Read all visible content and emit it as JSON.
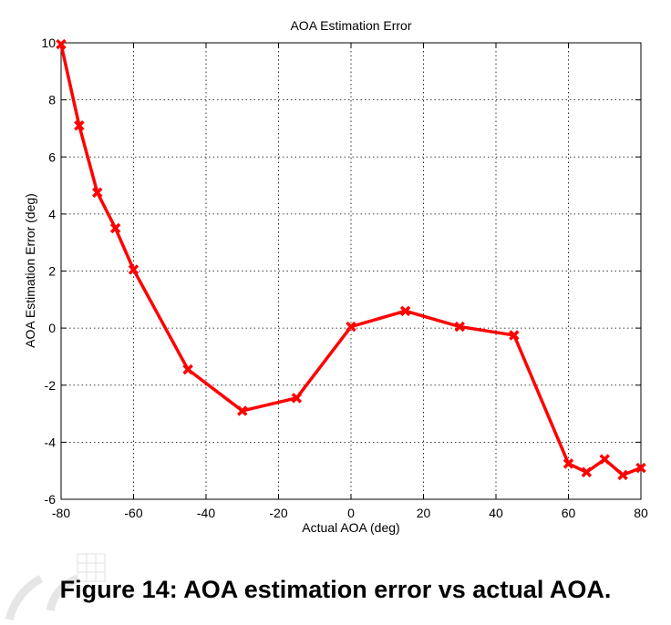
{
  "caption": "Figure 14: AOA estimation error vs actual AOA.",
  "chart_data": {
    "type": "line",
    "title": "AOA Estimation Error",
    "xlabel": "Actual AOA (deg)",
    "ylabel": "AOA Estimation Error (deg)",
    "xlim": [
      -80,
      80
    ],
    "ylim": [
      -6,
      10
    ],
    "xticks": [
      -80,
      -60,
      -40,
      -20,
      0,
      20,
      40,
      60,
      80
    ],
    "yticks": [
      -6,
      -4,
      -2,
      0,
      2,
      4,
      6,
      8,
      10
    ],
    "grid": true,
    "series": [
      {
        "color": "#ff0000",
        "marker": "x",
        "x": [
          -80,
          -75,
          -70,
          -65,
          -60,
          -45,
          -30,
          -15,
          0,
          15,
          30,
          45,
          60,
          65,
          70,
          75,
          80
        ],
        "y": [
          9.95,
          7.1,
          4.75,
          3.5,
          2.05,
          -1.45,
          -2.9,
          -2.45,
          0.05,
          0.6,
          0.05,
          -0.25,
          -4.75,
          -5.05,
          -4.6,
          -5.15,
          -4.9
        ]
      }
    ]
  }
}
